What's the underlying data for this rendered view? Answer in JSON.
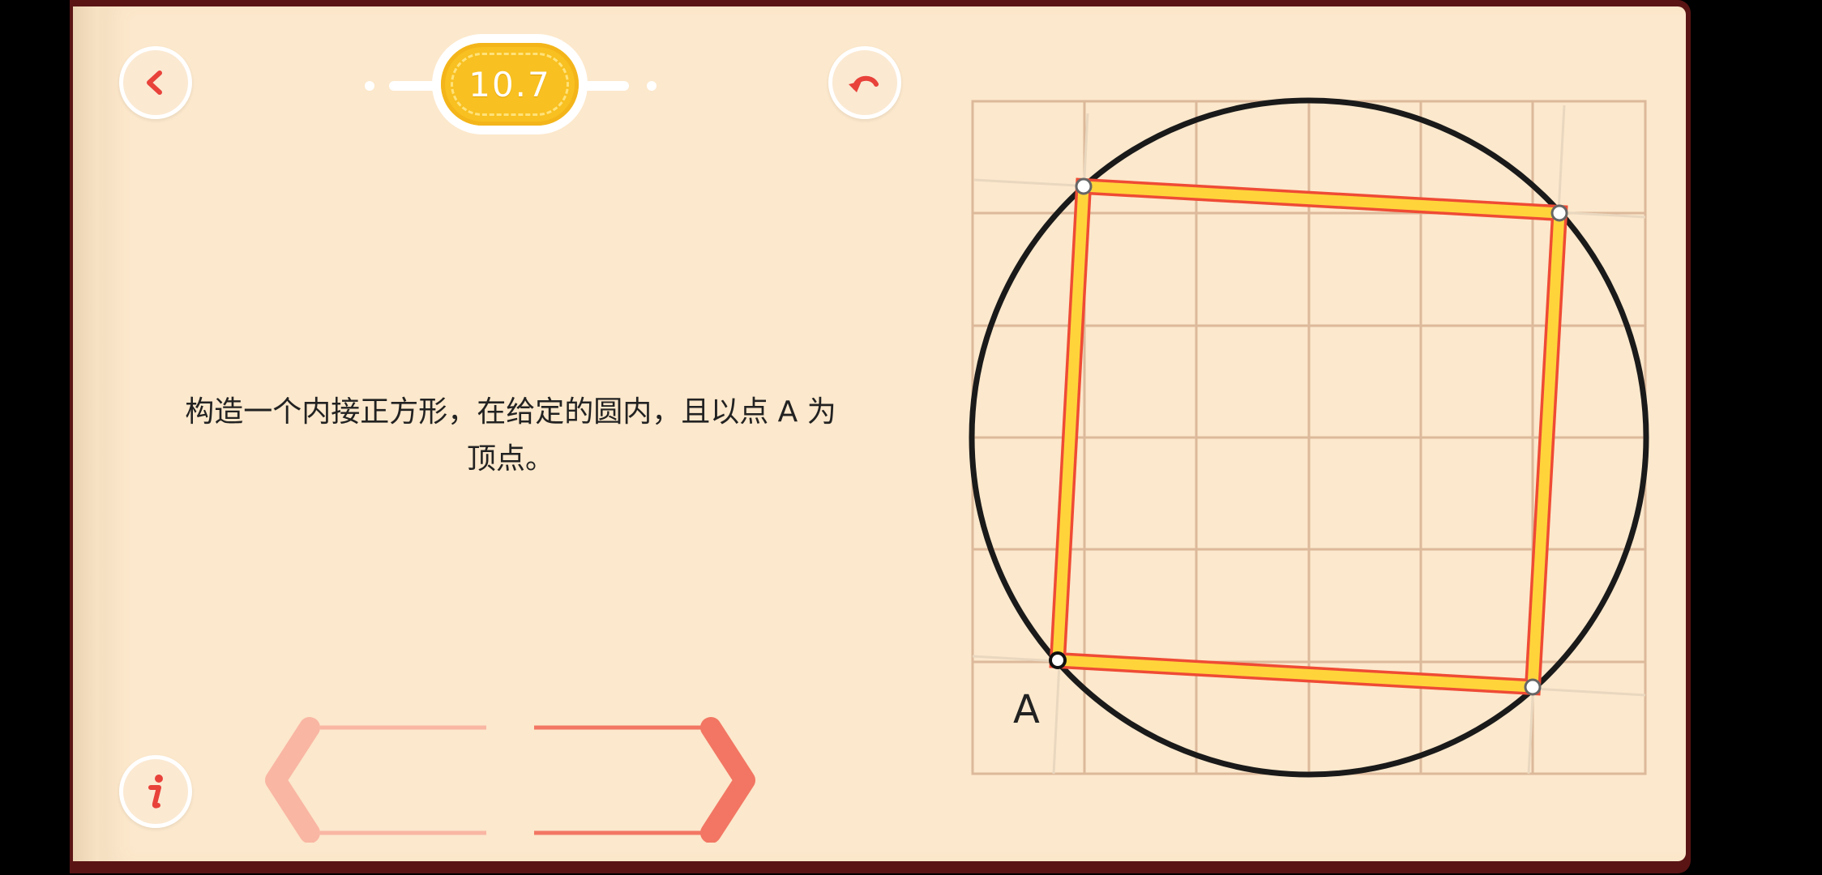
{
  "level": {
    "number": "10.7"
  },
  "prompt": {
    "line1": "构造一个内接正方形，在给定的圆内，且以点 A 为",
    "line2": "顶点。"
  },
  "figure": {
    "point_label": "A"
  },
  "controls": {
    "back_icon": "chevron-left-icon",
    "undo_icon": "undo-icon",
    "info_icon": "info-icon",
    "prev_icon": "chevron-left-icon",
    "next_icon": "chevron-right-icon"
  },
  "colors": {
    "accent_red": "#e8423a",
    "badge_yellow": "#f8c020",
    "paper": "#fce8cc",
    "grid": "#dcb99a",
    "square_fill": "#ffd43b",
    "square_edge": "#ef4b35",
    "arrow_prev": "#f9b6a3",
    "arrow_next": "#f27663"
  }
}
